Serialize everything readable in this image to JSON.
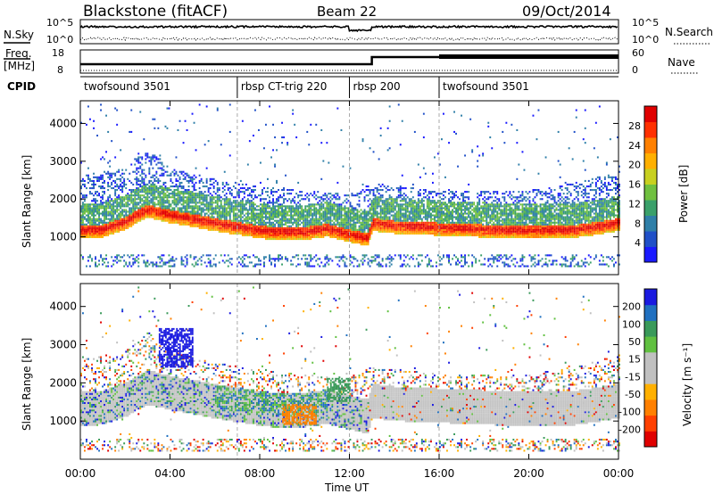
{
  "header": {
    "title": "Blackstone (fitACF)",
    "beam": "Beam 22",
    "date": "09/Oct/2014"
  },
  "status_panels": {
    "nsky_label": "N.Sky",
    "nsearch_label": "N.Search",
    "freq_label_top": "Freq.",
    "freq_label_bottom": "[MHz]",
    "nave_label": "Nave",
    "cpid_label": "CPID",
    "nsky_ticks": [
      "10^5",
      "10^0"
    ],
    "nsearch_ticks": [
      "10^5",
      "10^0"
    ],
    "freq_ticks": [
      "18",
      "8"
    ],
    "nave_ticks": [
      "60",
      "0"
    ]
  },
  "cpid_segments": [
    {
      "label": "twofsound 3501",
      "start": 0,
      "end": 7
    },
    {
      "label": "rbsp CT-trig 220",
      "start": 7,
      "end": 12
    },
    {
      "label": "rbsp 200",
      "start": 12,
      "end": 16
    },
    {
      "label": "twofsound 3501",
      "start": 16,
      "end": 24
    }
  ],
  "x_axis": {
    "title": "Time UT",
    "tick_labels": [
      "00:00",
      "04:00",
      "08:00",
      "12:00",
      "16:00",
      "20:00",
      "00:00"
    ],
    "tick_hours": [
      0,
      4,
      8,
      12,
      16,
      20,
      24
    ],
    "range_hours": [
      0,
      24
    ]
  },
  "power_panel": {
    "ylabel": "Slant Range [km]",
    "y_ticks": [
      "1000",
      "2000",
      "3000",
      "4000"
    ],
    "colorbar_label": "Power [dB]",
    "colorbar_ticks": [
      "4",
      "8",
      "12",
      "16",
      "20",
      "24",
      "28"
    ]
  },
  "velocity_panel": {
    "ylabel": "Slant Range [km]",
    "y_ticks": [
      "1000",
      "2000",
      "3000",
      "4000"
    ],
    "colorbar_label": "Velocity [m s⁻¹]",
    "colorbar_ticks": [
      "200",
      "100",
      "50",
      "15",
      "-15",
      "-50",
      "-100",
      "-200"
    ]
  },
  "chart_data": [
    {
      "type": "heatmap",
      "title": "Power",
      "xlabel": "Time UT",
      "ylabel": "Slant Range [km]",
      "xlim": [
        0,
        24
      ],
      "ylim": [
        0,
        4600
      ],
      "colorbar": {
        "label": "Power [dB]",
        "range": [
          0,
          32
        ],
        "ticks": [
          4,
          8,
          12,
          16,
          20,
          24,
          28
        ]
      },
      "band_center_km": [
        [
          0,
          1150
        ],
        [
          1,
          1180
        ],
        [
          2,
          1380
        ],
        [
          2.6,
          1600
        ],
        [
          3,
          1700
        ],
        [
          4,
          1560
        ],
        [
          5,
          1460
        ],
        [
          6,
          1340
        ],
        [
          7,
          1250
        ],
        [
          8,
          1150
        ],
        [
          9,
          1100
        ],
        [
          10,
          1120
        ],
        [
          11,
          1200
        ],
        [
          12,
          1050
        ],
        [
          12.8,
          950
        ],
        [
          13,
          1350
        ],
        [
          14,
          1280
        ],
        [
          16,
          1230
        ],
        [
          18,
          1180
        ],
        [
          20,
          1140
        ],
        [
          22,
          1170
        ],
        [
          23,
          1250
        ],
        [
          24,
          1350
        ]
      ],
      "scatter_top_km": [
        [
          0,
          2600
        ],
        [
          2,
          2800
        ],
        [
          3,
          3300
        ],
        [
          4,
          2800
        ],
        [
          6,
          2500
        ],
        [
          8,
          2300
        ],
        [
          10,
          2200
        ],
        [
          12,
          2100
        ],
        [
          13,
          2400
        ],
        [
          16,
          2200
        ],
        [
          20,
          2200
        ],
        [
          22,
          2400
        ],
        [
          24,
          2700
        ]
      ]
    },
    {
      "type": "heatmap",
      "title": "Velocity",
      "xlabel": "Time UT",
      "ylabel": "Slant Range [km]",
      "xlim": [
        0,
        24
      ],
      "ylim": [
        0,
        4600
      ],
      "colorbar": {
        "label": "Velocity [m s⁻¹]",
        "range": [
          -250,
          250
        ],
        "ticks": [
          200,
          100,
          50,
          15,
          -15,
          -50,
          -100,
          -200
        ]
      },
      "features": [
        {
          "desc": "blue patch",
          "hours": [
            3.5,
            5
          ],
          "range_km": [
            2400,
            3400
          ],
          "velocity": 200
        },
        {
          "desc": "orange patch",
          "hours": [
            9,
            10.5
          ],
          "range_km": [
            900,
            1400
          ],
          "velocity": -60
        },
        {
          "desc": "green patch",
          "hours": [
            11,
            12
          ],
          "range_km": [
            1500,
            2100
          ],
          "velocity": 60
        },
        {
          "desc": "gray ground scatter",
          "hours": [
            12.8,
            24
          ],
          "range_km": [
            900,
            2400
          ],
          "velocity": 0
        }
      ]
    }
  ],
  "colors": {
    "power_scale": [
      "#1a1aff",
      "#2050c8",
      "#2f7fa8",
      "#3aa06a",
      "#70c040",
      "#c8d020",
      "#ffb000",
      "#ff8000",
      "#ff3000",
      "#e00000"
    ],
    "velocity_scale": [
      "#e00000",
      "#ff4000",
      "#ff8000",
      "#ffb000",
      "#c0c0c0",
      "#c0c0c0",
      "#60c040",
      "#3a9a5a",
      "#2070c0",
      "#1a1ae0"
    ]
  }
}
